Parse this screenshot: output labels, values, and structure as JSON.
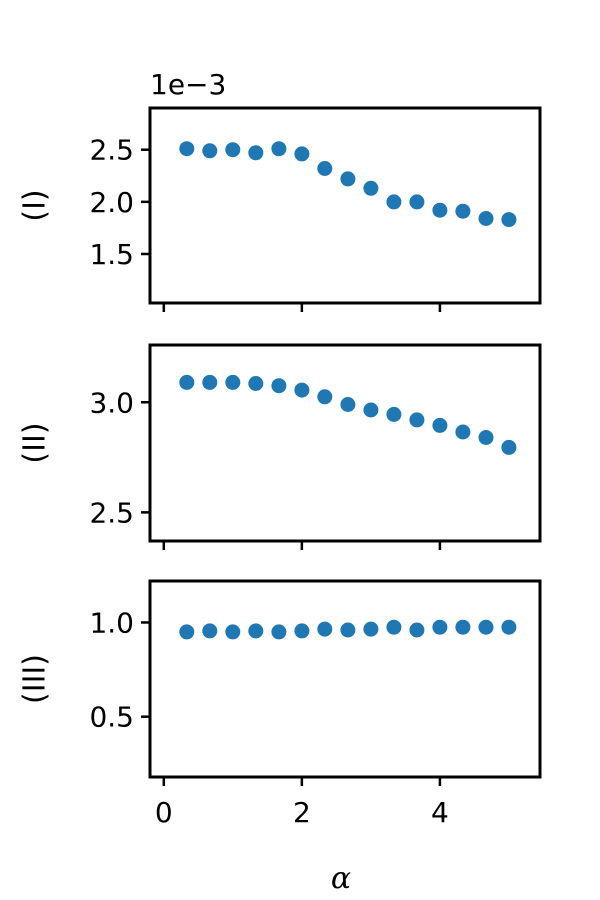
{
  "chart_data": {
    "type": "scatter",
    "xlabel": "α",
    "xlim": [
      -0.2,
      5.45
    ],
    "xticks": [
      0,
      2,
      4
    ],
    "color": "#1f77b4",
    "x": [
      0.333,
      0.667,
      1.0,
      1.333,
      1.667,
      2.0,
      2.333,
      2.667,
      3.0,
      3.333,
      3.667,
      4.0,
      4.333,
      4.667,
      5.0
    ],
    "panels": [
      {
        "ylabel": "(I)",
        "offset_label": "1e−3",
        "scale": 0.001,
        "ylim": [
          1.03,
          2.9
        ],
        "yticks": [
          1.5,
          2.0,
          2.5
        ],
        "ytick_labels": [
          "1.5",
          "2.0",
          "2.5"
        ],
        "values": [
          2.51,
          2.49,
          2.5,
          2.47,
          2.51,
          2.46,
          2.32,
          2.22,
          2.13,
          2.0,
          2.0,
          1.92,
          1.91,
          1.84,
          1.83
        ]
      },
      {
        "ylabel": "(II)",
        "offset_label": "",
        "ylim": [
          2.37,
          3.26
        ],
        "yticks": [
          2.5,
          3.0
        ],
        "ytick_labels": [
          "2.5",
          "3.0"
        ],
        "values": [
          3.09,
          3.09,
          3.09,
          3.085,
          3.075,
          3.055,
          3.025,
          2.99,
          2.965,
          2.945,
          2.92,
          2.895,
          2.865,
          2.84,
          2.795
        ]
      },
      {
        "ylabel": "(III)",
        "offset_label": "",
        "ylim": [
          0.18,
          1.22
        ],
        "yticks": [
          0.5,
          1.0
        ],
        "ytick_labels": [
          "0.5",
          "1.0"
        ],
        "values": [
          0.95,
          0.955,
          0.95,
          0.955,
          0.95,
          0.955,
          0.965,
          0.96,
          0.965,
          0.975,
          0.96,
          0.975,
          0.975,
          0.975,
          0.975
        ]
      }
    ]
  }
}
